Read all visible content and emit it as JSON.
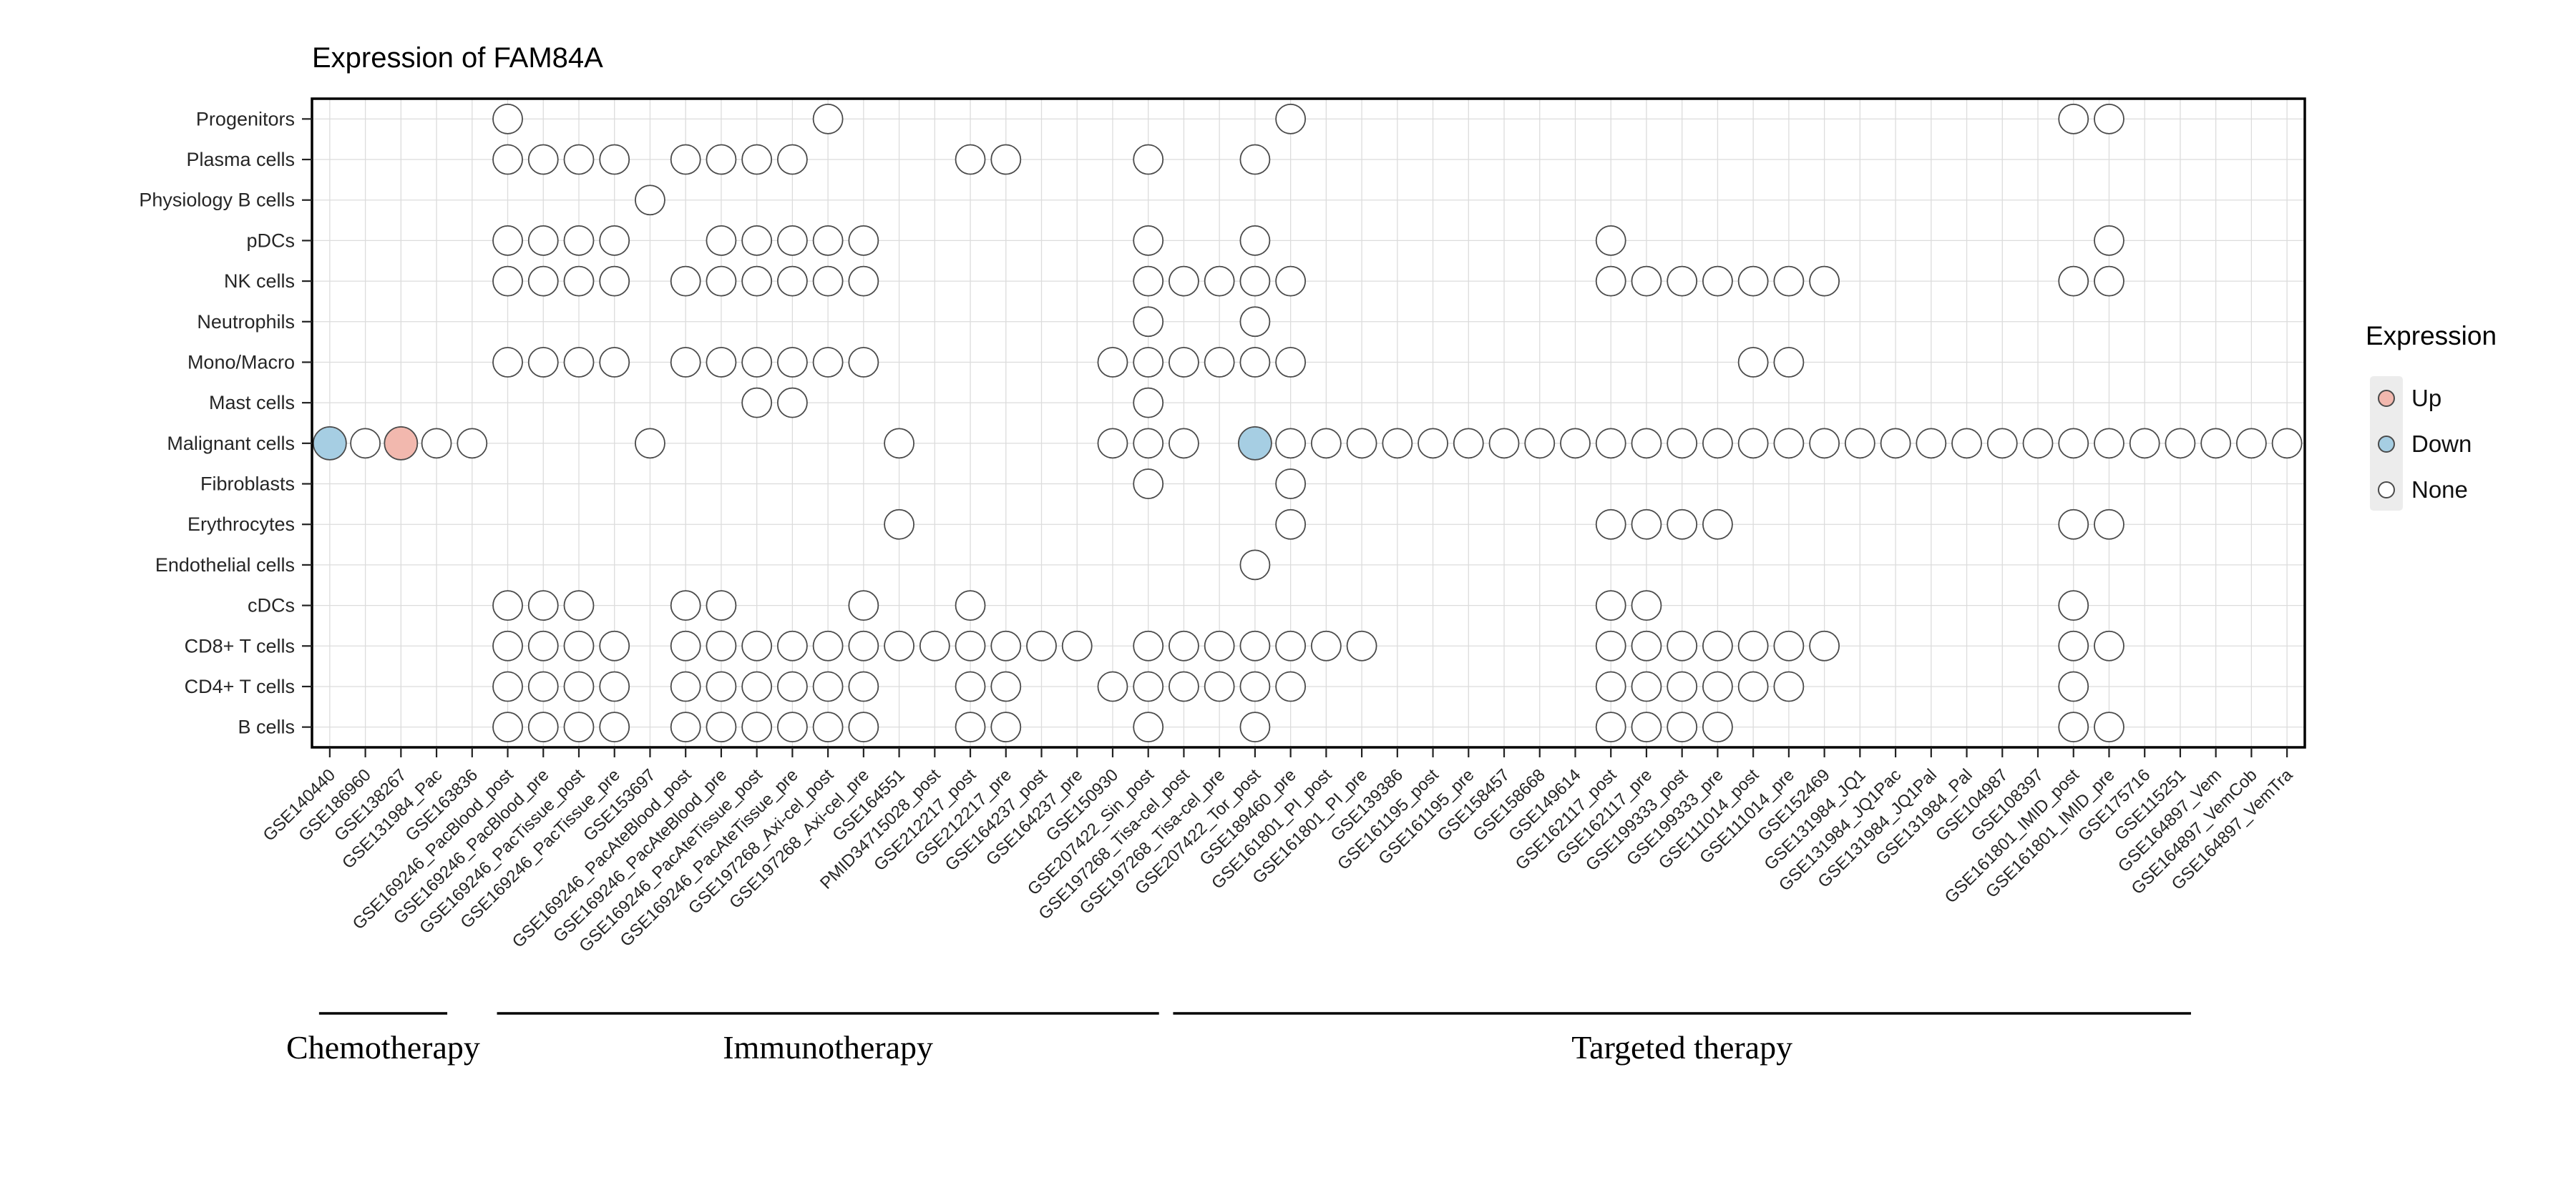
{
  "title": "Expression of FAM84A",
  "legend": {
    "title": "Expression",
    "items": [
      {
        "label": "Up",
        "key": "up"
      },
      {
        "label": "Down",
        "key": "down"
      },
      {
        "label": "None",
        "key": "none"
      }
    ]
  },
  "colors": {
    "up": "#F2B8AE",
    "down": "#A6CEE3",
    "none": "#FFFFFF",
    "dot_stroke": "#4A4A4A",
    "grid": "#DCDCDC",
    "border": "#000000",
    "axis_text": "#262626",
    "legend_key_bg": "#ECECEC"
  },
  "chart_data": {
    "type": "heatmap",
    "subtype": "status-dot-matrix",
    "title": "Expression of FAM84A",
    "legend_title": "Expression",
    "statuses": [
      "Up",
      "Down",
      "None"
    ],
    "rows": [
      "Progenitors",
      "Plasma cells",
      "Physiology B cells",
      "pDCs",
      "NK cells",
      "Neutrophils",
      "Mono/Macro",
      "Mast cells",
      "Malignant cells",
      "Fibroblasts",
      "Erythrocytes",
      "Endothelial cells",
      "cDCs",
      "CD8+ T cells",
      "CD4+ T cells",
      "B cells"
    ],
    "columns": [
      "GSE140440",
      "GSE186960",
      "GSE138267",
      "GSE131984_Pac",
      "GSE163836",
      "GSE169246_PacBlood_post",
      "GSE169246_PacBlood_pre",
      "GSE169246_PacTissue_post",
      "GSE169246_PacTissue_pre",
      "GSE153697",
      "GSE169246_PacAteBlood_post",
      "GSE169246_PacAteBlood_pre",
      "GSE169246_PacAteTissue_post",
      "GSE169246_PacAteTissue_pre",
      "GSE197268_Axi-cel_post",
      "GSE197268_Axi-cel_pre",
      "GSE164551",
      "PMID34715028_post",
      "GSE212217_post",
      "GSE212217_pre",
      "GSE164237_post",
      "GSE164237_pre",
      "GSE150930",
      "GSE207422_Sin_post",
      "GSE197268_Tisa-cel_post",
      "GSE197268_Tisa-cel_pre",
      "GSE207422_Tor_post",
      "GSE189460_pre",
      "GSE161801_PI_post",
      "GSE161801_PI_pre",
      "GSE139386",
      "GSE161195_post",
      "GSE161195_pre",
      "GSE158457",
      "GSE158668",
      "GSE149614",
      "GSE162117_post",
      "GSE162117_pre",
      "GSE199333_post",
      "GSE199333_pre",
      "GSE111014_post",
      "GSE111014_pre",
      "GSE152469",
      "GSE131984_JQ1",
      "GSE131984_JQ1Pac",
      "GSE131984_JQ1Pal",
      "GSE131984_Pal",
      "GSE104987",
      "GSE108397",
      "GSE161801_IMID_post",
      "GSE161801_IMID_pre",
      "GSE175716",
      "GSE115251",
      "GSE164897_Vem",
      "GSE164897_VemCob",
      "GSE164897_VemTra"
    ],
    "groups": [
      {
        "label": "Chemotherapy",
        "col_start": 1,
        "col_end": 4
      },
      {
        "label": "Immunotherapy",
        "col_start": 6,
        "col_end": 24
      },
      {
        "label": "Targeted therapy",
        "col_start": 25,
        "col_end": 53
      }
    ],
    "dots_note": "column indices are 1-based into columns[]; status is Up/Down/None circle at (row, column)",
    "dots": [
      {
        "row": "Progenitors",
        "none": [
          6,
          15,
          28,
          50,
          51
        ]
      },
      {
        "row": "Plasma cells",
        "none": [
          6,
          7,
          8,
          9,
          11,
          12,
          13,
          14,
          19,
          20,
          24,
          27
        ]
      },
      {
        "row": "Physiology B cells",
        "none": [
          10
        ]
      },
      {
        "row": "pDCs",
        "none": [
          6,
          7,
          8,
          9,
          12,
          13,
          14,
          15,
          16,
          24,
          27,
          37,
          51
        ]
      },
      {
        "row": "NK cells",
        "none": [
          6,
          7,
          8,
          9,
          11,
          12,
          13,
          14,
          15,
          16,
          24,
          25,
          26,
          27,
          28,
          37,
          38,
          39,
          40,
          41,
          42,
          43,
          50,
          51
        ]
      },
      {
        "row": "Neutrophils",
        "none": [
          24,
          27
        ]
      },
      {
        "row": "Mono/Macro",
        "none": [
          6,
          7,
          8,
          9,
          11,
          12,
          13,
          14,
          15,
          16,
          23,
          24,
          25,
          26,
          27,
          28,
          41,
          42
        ]
      },
      {
        "row": "Mast cells",
        "none": [
          13,
          14,
          24
        ]
      },
      {
        "row": "Malignant cells",
        "up": [
          3
        ],
        "down": [
          1,
          27
        ],
        "none": [
          2,
          4,
          5,
          10,
          17,
          23,
          24,
          25,
          28,
          29,
          30,
          31,
          32,
          33,
          34,
          35,
          36,
          37,
          38,
          39,
          40,
          41,
          42,
          43,
          44,
          45,
          46,
          47,
          48,
          49,
          50,
          51,
          52,
          53,
          54,
          55,
          56
        ]
      },
      {
        "row": "Fibroblasts",
        "none": [
          24,
          28
        ]
      },
      {
        "row": "Erythrocytes",
        "none": [
          17,
          28,
          37,
          38,
          39,
          40,
          50,
          51
        ]
      },
      {
        "row": "Endothelial cells",
        "none": [
          27
        ]
      },
      {
        "row": "cDCs",
        "none": [
          6,
          7,
          8,
          11,
          12,
          16,
          19,
          37,
          38,
          50
        ]
      },
      {
        "row": "CD8+ T cells",
        "none": [
          6,
          7,
          8,
          9,
          11,
          12,
          13,
          14,
          15,
          16,
          17,
          18,
          19,
          20,
          21,
          22,
          24,
          25,
          26,
          27,
          28,
          29,
          30,
          37,
          38,
          39,
          40,
          41,
          42,
          43,
          50,
          51
        ]
      },
      {
        "row": "CD4+ T cells",
        "none": [
          6,
          7,
          8,
          9,
          11,
          12,
          13,
          14,
          15,
          16,
          19,
          20,
          23,
          24,
          25,
          26,
          27,
          28,
          37,
          38,
          39,
          40,
          41,
          42,
          50
        ]
      },
      {
        "row": "B cells",
        "none": [
          6,
          7,
          8,
          9,
          11,
          12,
          13,
          14,
          15,
          16,
          19,
          20,
          24,
          27,
          37,
          38,
          39,
          40,
          50,
          51
        ]
      }
    ]
  }
}
